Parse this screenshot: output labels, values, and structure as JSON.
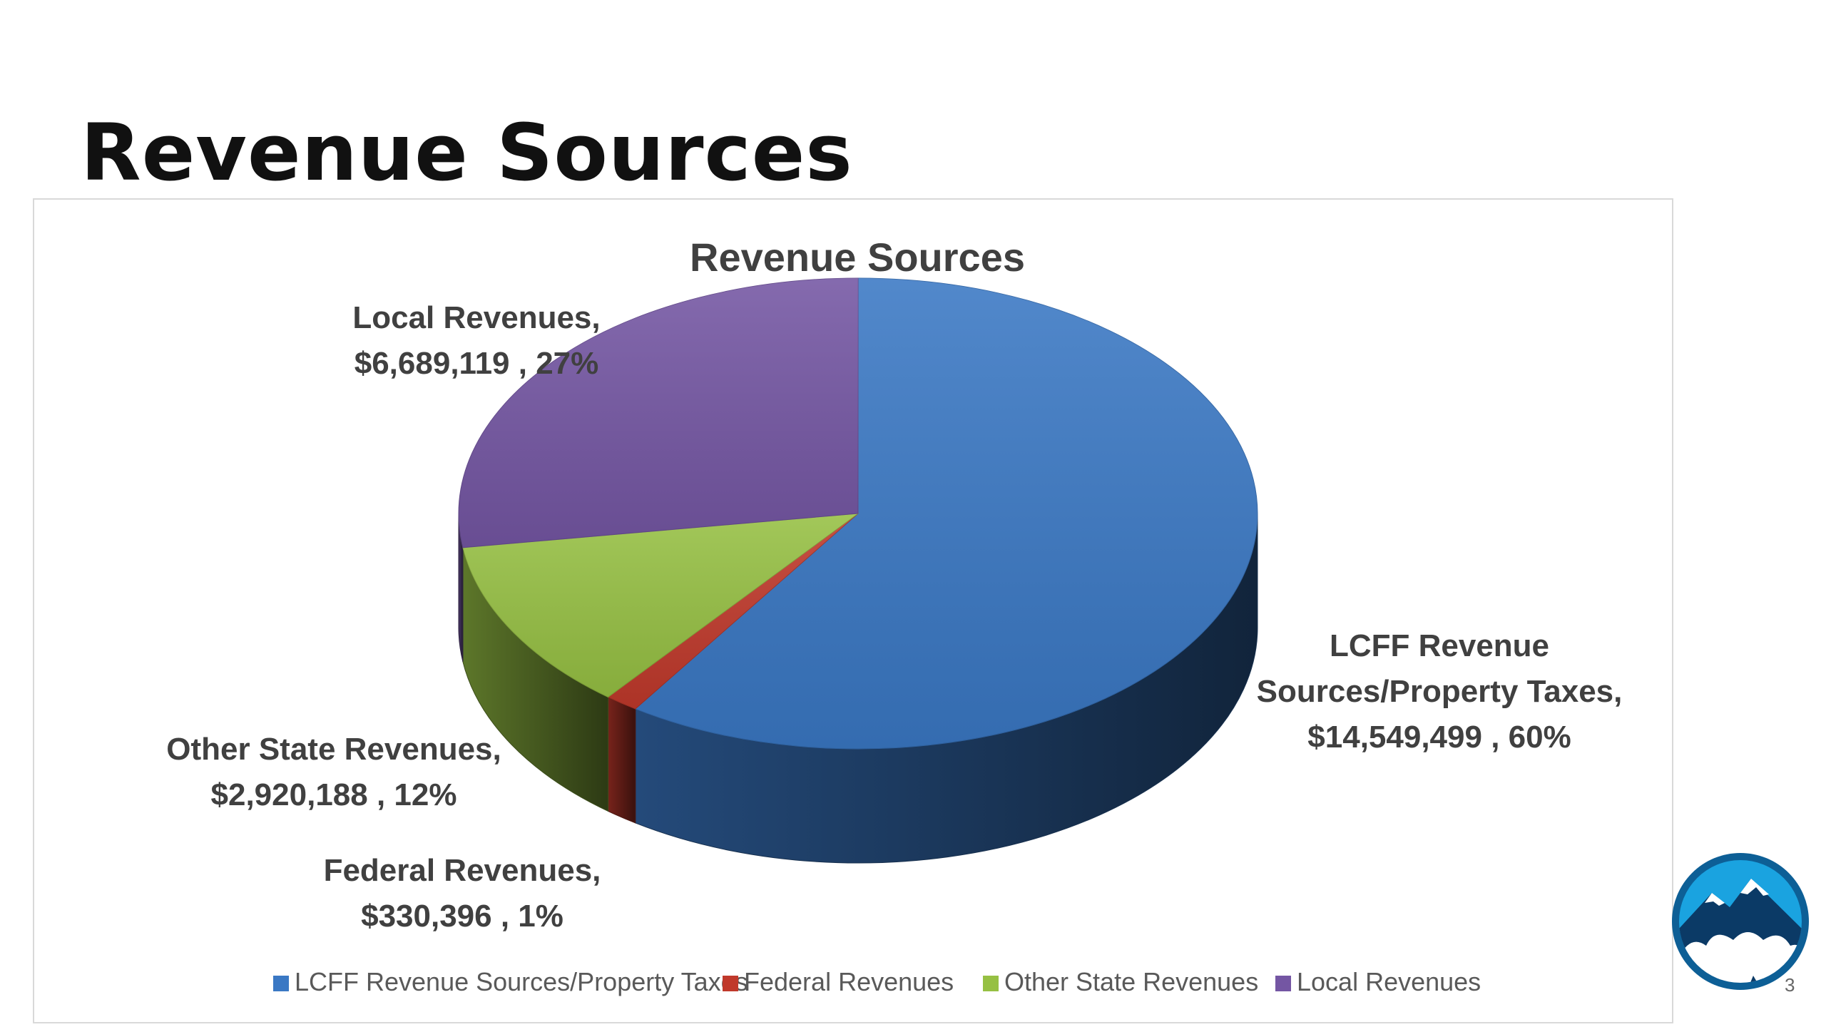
{
  "slide": {
    "title": "Revenue Sources",
    "page_number": "3"
  },
  "chart_data": {
    "type": "pie",
    "title": "Revenue Sources",
    "three_d": true,
    "legend_position": "bottom",
    "slices": [
      {
        "name": "LCFF Revenue Sources/Property Taxes",
        "value": 14549499,
        "percent": 60,
        "color": "#3a78c4",
        "label_lines": [
          "LCFF Revenue",
          "Sources/Property Taxes,",
          "$14,549,499 , 60%"
        ]
      },
      {
        "name": "Federal Revenues",
        "value": 330396,
        "percent": 1,
        "color": "#c0392b",
        "label_lines": [
          "Federal Revenues,",
          "$330,396 , 1%"
        ]
      },
      {
        "name": "Other State Revenues",
        "value": 2920188,
        "percent": 12,
        "color": "#96c043",
        "label_lines": [
          "Other State Revenues,",
          "$2,920,188 , 12%"
        ]
      },
      {
        "name": "Local Revenues",
        "value": 6689119,
        "percent": 27,
        "color": "#7456a3",
        "label_lines": [
          "Local Revenues,",
          "$6,689,119 , 27%"
        ]
      }
    ],
    "legend": [
      "LCFF Revenue Sources/Property Taxes",
      "Federal Revenues",
      "Other State Revenues",
      "Local Revenues"
    ]
  },
  "logo": {
    "icon": "mountain-logo-icon",
    "color": "#0d5f96"
  }
}
